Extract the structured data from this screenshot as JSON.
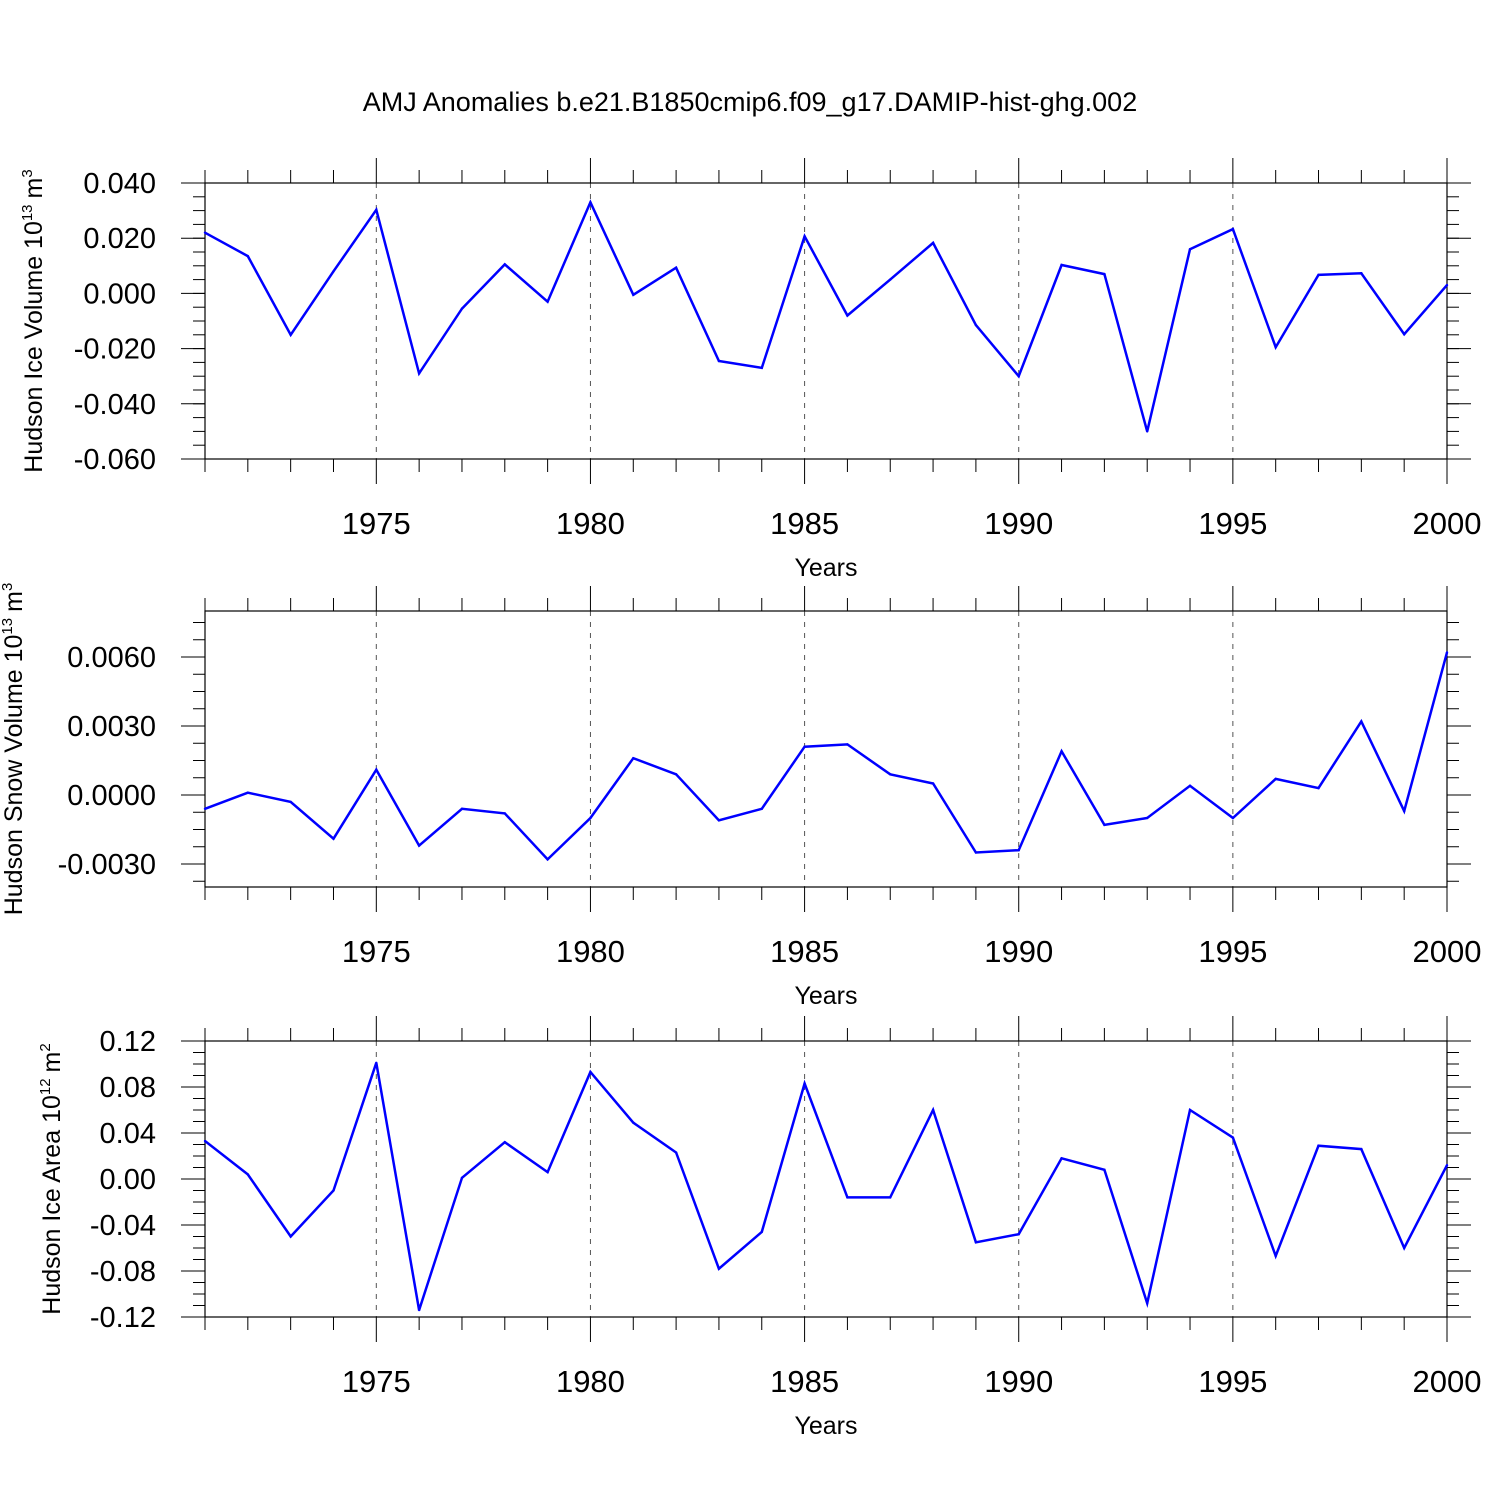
{
  "title": "AMJ Anomalies b.e21.B1850cmip6.f09_g17.DAMIP-hist-ghg.002",
  "colors": {
    "series": "#0000ff",
    "axis": "#000000",
    "grid": "#555555"
  },
  "chart_data": [
    {
      "type": "line",
      "ylabel_main": "Hudson Ice Volume 10",
      "ylabel_sup": "13",
      "ylabel_unit": "m",
      "ylabel_unit_sup": "3",
      "xlabel": "Years",
      "xlim": [
        1971,
        2000
      ],
      "ylim": [
        -0.06,
        0.04
      ],
      "yticks": [
        -0.06,
        -0.04,
        -0.02,
        0.0,
        0.02,
        0.04
      ],
      "ytick_labels": [
        "-0.060",
        "-0.040",
        "-0.020",
        "0.000",
        "0.020",
        "0.040"
      ],
      "xticks": [
        1975,
        1980,
        1985,
        1990,
        1995,
        2000
      ],
      "xtick_labels": [
        "1975",
        "1980",
        "1985",
        "1990",
        "1995",
        "2000"
      ],
      "grid_x": [
        1975,
        1980,
        1985,
        1990,
        1995
      ],
      "x": [
        1971,
        1972,
        1973,
        1974,
        1975,
        1976,
        1977,
        1978,
        1979,
        1980,
        1981,
        1982,
        1983,
        1984,
        1985,
        1986,
        1987,
        1988,
        1989,
        1990,
        1991,
        1992,
        1993,
        1994,
        1995,
        1996,
        1997,
        1998,
        1999,
        2000
      ],
      "y": [
        0.022,
        0.0135,
        -0.015,
        0.008,
        0.0303,
        -0.029,
        -0.0055,
        0.0105,
        -0.003,
        0.033,
        -0.0005,
        0.0093,
        -0.0245,
        -0.027,
        0.0207,
        -0.008,
        0.005,
        0.0183,
        -0.0115,
        -0.03,
        0.0103,
        0.007,
        -0.05,
        0.016,
        0.0233,
        -0.0195,
        0.0067,
        0.0073,
        -0.0148,
        0.003
      ]
    },
    {
      "type": "line",
      "ylabel_main": "Hudson Snow Volume 10",
      "ylabel_sup": "13",
      "ylabel_unit": "m",
      "ylabel_unit_sup": "3",
      "xlabel": "Years",
      "xlim": [
        1971,
        2000
      ],
      "ylim": [
        -0.004,
        0.008
      ],
      "yticks": [
        -0.003,
        0.0,
        0.003,
        0.006
      ],
      "ytick_labels": [
        "-0.0030",
        "0.0000",
        "0.0030",
        "0.0060"
      ],
      "xticks": [
        1975,
        1980,
        1985,
        1990,
        1995,
        2000
      ],
      "xtick_labels": [
        "1975",
        "1980",
        "1985",
        "1990",
        "1995",
        "2000"
      ],
      "grid_x": [
        1975,
        1980,
        1985,
        1990,
        1995
      ],
      "x": [
        1971,
        1972,
        1973,
        1974,
        1975,
        1976,
        1977,
        1978,
        1979,
        1980,
        1981,
        1982,
        1983,
        1984,
        1985,
        1986,
        1987,
        1988,
        1989,
        1990,
        1991,
        1992,
        1993,
        1994,
        1995,
        1996,
        1997,
        1998,
        1999,
        2000
      ],
      "y": [
        -0.0006,
        0.0001,
        -0.0003,
        -0.0019,
        0.0011,
        -0.0022,
        -0.0006,
        -0.0008,
        -0.0028,
        -0.001,
        0.0016,
        0.0009,
        -0.0011,
        -0.0006,
        0.0021,
        0.0022,
        0.0009,
        0.0005,
        -0.0025,
        -0.0024,
        0.0019,
        -0.0013,
        -0.001,
        0.0004,
        -0.001,
        0.0007,
        0.0003,
        0.0032,
        -0.0007,
        0.0062
      ]
    },
    {
      "type": "line",
      "ylabel_main": "Hudson Ice Area 10",
      "ylabel_sup": "12",
      "ylabel_unit": "m",
      "ylabel_unit_sup": "2",
      "xlabel": "Years",
      "xlim": [
        1971,
        2000
      ],
      "ylim": [
        -0.12,
        0.12
      ],
      "yticks": [
        -0.12,
        -0.08,
        -0.04,
        0.0,
        0.04,
        0.08,
        0.12
      ],
      "ytick_labels": [
        "-0.12",
        "-0.08",
        "-0.04",
        "0.00",
        "0.04",
        "0.08",
        "0.12"
      ],
      "xticks": [
        1975,
        1980,
        1985,
        1990,
        1995,
        2000
      ],
      "xtick_labels": [
        "1975",
        "1980",
        "1985",
        "1990",
        "1995",
        "2000"
      ],
      "grid_x": [
        1975,
        1980,
        1985,
        1990,
        1995
      ],
      "x": [
        1971,
        1972,
        1973,
        1974,
        1975,
        1976,
        1977,
        1978,
        1979,
        1980,
        1981,
        1982,
        1983,
        1984,
        1985,
        1986,
        1987,
        1988,
        1989,
        1990,
        1991,
        1992,
        1993,
        1994,
        1995,
        1996,
        1997,
        1998,
        1999,
        2000
      ],
      "y": [
        0.033,
        0.004,
        -0.05,
        -0.01,
        0.101,
        -0.114,
        0.001,
        0.032,
        0.006,
        0.093,
        0.049,
        0.023,
        -0.078,
        -0.046,
        0.083,
        -0.016,
        -0.016,
        0.06,
        -0.055,
        -0.048,
        0.018,
        0.008,
        -0.108,
        0.06,
        0.036,
        -0.067,
        0.029,
        0.026,
        -0.06,
        0.012
      ]
    }
  ]
}
